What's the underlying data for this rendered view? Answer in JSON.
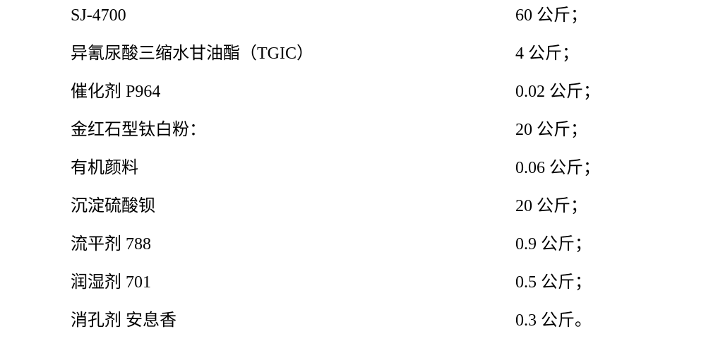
{
  "ingredients": [
    {
      "name": "SJ-4700",
      "amount": "60 公斤；"
    },
    {
      "name": "异氰尿酸三缩水甘油酯（TGIC）",
      "amount": " 4 公斤；"
    },
    {
      "name": "催化剂 P964",
      "amount": " 0.02 公斤；"
    },
    {
      "name": "金红石型钛白粉：",
      "amount": " 20 公斤；"
    },
    {
      "name": "有机颜料",
      "amount": " 0.06 公斤；"
    },
    {
      "name": "沉淀硫酸钡",
      "amount": " 20 公斤；"
    },
    {
      "name": "流平剂  788",
      "amount": " 0.9 公斤；"
    },
    {
      "name": "润湿剂 701",
      "amount": " 0.5 公斤；"
    },
    {
      "name": "消孔剂  安息香",
      "amount": " 0.3 公斤。"
    }
  ],
  "font_size": "24px",
  "text_color": "#000000",
  "background_color": "#ffffff"
}
